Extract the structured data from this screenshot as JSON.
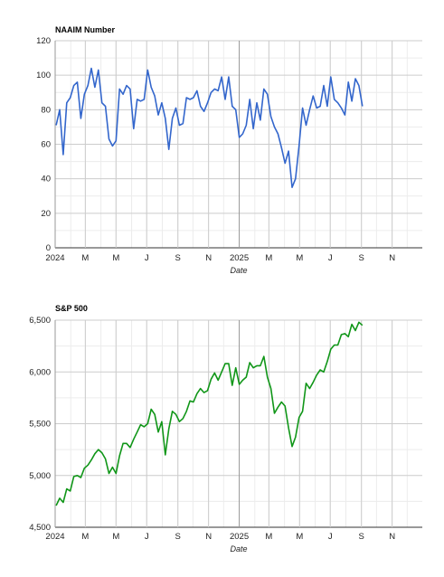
{
  "chart_data": [
    {
      "type": "line",
      "title": "NAAIM Number",
      "xlabel": "Date",
      "ylabel": "",
      "ylim": [
        0,
        120
      ],
      "yticks": [
        "0",
        "20",
        "40",
        "60",
        "80",
        "100",
        "120"
      ],
      "xticks": [
        "2024",
        "M",
        "M",
        "J",
        "S",
        "N",
        "2025",
        "M",
        "M",
        "J",
        "S",
        "N"
      ],
      "grid": true,
      "color": "#3366cc",
      "series": [
        {
          "x": [
            "2024-01-03",
            "2024-01-10",
            "2024-01-17",
            "2024-01-24",
            "2024-01-31",
            "2024-02-07",
            "2024-02-14",
            "2024-02-21",
            "2024-02-28",
            "2024-03-06",
            "2024-03-13",
            "2024-03-20",
            "2024-03-27",
            "2024-04-03",
            "2024-04-10",
            "2024-04-17",
            "2024-04-24",
            "2024-05-01",
            "2024-05-08",
            "2024-05-15",
            "2024-05-22",
            "2024-05-29",
            "2024-06-05",
            "2024-06-12",
            "2024-06-19",
            "2024-06-26",
            "2024-07-03",
            "2024-07-10",
            "2024-07-17",
            "2024-07-24",
            "2024-07-31",
            "2024-08-07",
            "2024-08-14",
            "2024-08-21",
            "2024-08-28",
            "2024-09-04",
            "2024-09-11",
            "2024-09-18",
            "2024-09-25",
            "2024-10-02",
            "2024-10-09",
            "2024-10-16",
            "2024-10-23",
            "2024-10-30",
            "2024-11-06",
            "2024-11-13",
            "2024-11-20",
            "2024-11-27",
            "2024-12-04",
            "2024-12-11",
            "2024-12-18",
            "2024-12-25",
            "2025-01-01",
            "2025-01-08",
            "2025-01-15",
            "2025-01-22",
            "2025-01-29",
            "2025-02-05",
            "2025-02-12",
            "2025-02-19",
            "2025-02-26",
            "2025-03-05",
            "2025-03-12",
            "2025-03-19",
            "2025-03-26",
            "2025-04-02",
            "2025-04-09",
            "2025-04-16",
            "2025-04-23",
            "2025-04-30",
            "2025-05-07",
            "2025-05-14",
            "2025-05-21",
            "2025-05-28",
            "2025-06-04",
            "2025-06-11",
            "2025-06-18",
            "2025-06-25",
            "2025-07-02",
            "2025-07-09",
            "2025-07-16",
            "2025-07-23",
            "2025-07-30",
            "2025-08-06",
            "2025-08-13",
            "2025-08-20",
            "2025-08-27",
            "2025-09-03"
          ],
          "values": [
            71,
            80,
            54,
            84,
            87,
            94,
            96,
            75,
            89,
            94,
            104,
            93,
            103,
            84,
            82,
            63,
            59,
            62,
            92,
            89,
            94,
            92,
            69,
            86,
            85,
            86,
            103,
            93,
            88,
            77,
            84,
            75,
            57,
            75,
            81,
            71,
            72,
            87,
            86,
            87,
            91,
            82,
            79,
            84,
            90,
            92,
            91,
            99,
            86,
            99,
            82,
            80,
            64,
            66,
            71,
            86,
            69,
            84,
            74,
            92,
            89,
            76,
            70,
            66,
            58,
            49,
            56,
            35,
            40,
            59,
            81,
            71,
            80,
            88,
            81,
            82,
            94,
            82,
            99,
            86,
            84,
            81,
            77,
            96,
            85,
            98,
            94,
            82
          ]
        }
      ]
    },
    {
      "type": "line",
      "title": "S&P 500",
      "xlabel": "Date",
      "ylabel": "",
      "ylim": [
        4500,
        6500
      ],
      "yticks": [
        "4,500",
        "5,000",
        "5,500",
        "6,000",
        "6,500"
      ],
      "xticks": [
        "2024",
        "M",
        "M",
        "J",
        "S",
        "N",
        "2025",
        "M",
        "M",
        "J",
        "S",
        "N"
      ],
      "grid": true,
      "color": "#109618",
      "series": [
        {
          "x": [
            "2024-01-03",
            "2024-01-10",
            "2024-01-17",
            "2024-01-24",
            "2024-01-31",
            "2024-02-07",
            "2024-02-14",
            "2024-02-21",
            "2024-02-28",
            "2024-03-06",
            "2024-03-13",
            "2024-03-20",
            "2024-03-27",
            "2024-04-03",
            "2024-04-10",
            "2024-04-17",
            "2024-04-24",
            "2024-05-01",
            "2024-05-08",
            "2024-05-15",
            "2024-05-22",
            "2024-05-29",
            "2024-06-05",
            "2024-06-12",
            "2024-06-19",
            "2024-06-26",
            "2024-07-03",
            "2024-07-10",
            "2024-07-17",
            "2024-07-24",
            "2024-07-31",
            "2024-08-07",
            "2024-08-14",
            "2024-08-21",
            "2024-08-28",
            "2024-09-04",
            "2024-09-11",
            "2024-09-18",
            "2024-09-25",
            "2024-10-02",
            "2024-10-09",
            "2024-10-16",
            "2024-10-23",
            "2024-10-30",
            "2024-11-06",
            "2024-11-13",
            "2024-11-20",
            "2024-11-27",
            "2024-12-04",
            "2024-12-11",
            "2024-12-18",
            "2024-12-25",
            "2025-01-01",
            "2025-01-08",
            "2025-01-15",
            "2025-01-22",
            "2025-01-29",
            "2025-02-05",
            "2025-02-12",
            "2025-02-19",
            "2025-02-26",
            "2025-03-05",
            "2025-03-12",
            "2025-03-19",
            "2025-03-26",
            "2025-04-02",
            "2025-04-09",
            "2025-04-16",
            "2025-04-23",
            "2025-04-30",
            "2025-05-07",
            "2025-05-14",
            "2025-05-21",
            "2025-05-28",
            "2025-06-04",
            "2025-06-11",
            "2025-06-18",
            "2025-06-25",
            "2025-07-02",
            "2025-07-09",
            "2025-07-16",
            "2025-07-23",
            "2025-07-30",
            "2025-08-06",
            "2025-08-13",
            "2025-08-20",
            "2025-08-27",
            "2025-09-03"
          ],
          "values": [
            4710,
            4780,
            4740,
            4870,
            4850,
            4990,
            5000,
            4980,
            5070,
            5100,
            5150,
            5210,
            5250,
            5220,
            5160,
            5020,
            5080,
            5020,
            5190,
            5310,
            5310,
            5270,
            5350,
            5420,
            5490,
            5470,
            5500,
            5640,
            5590,
            5420,
            5520,
            5200,
            5450,
            5620,
            5590,
            5520,
            5550,
            5620,
            5720,
            5710,
            5790,
            5840,
            5800,
            5820,
            5930,
            5990,
            5920,
            6000,
            6080,
            6080,
            5870,
            6040,
            5880,
            5920,
            5950,
            6090,
            6040,
            6060,
            6060,
            6150,
            5950,
            5840,
            5600,
            5660,
            5710,
            5670,
            5460,
            5280,
            5370,
            5560,
            5620,
            5890,
            5840,
            5900,
            5970,
            6020,
            6000,
            6100,
            6220,
            6260,
            6260,
            6360,
            6370,
            6340,
            6460,
            6400,
            6480,
            6450
          ]
        }
      ]
    }
  ]
}
